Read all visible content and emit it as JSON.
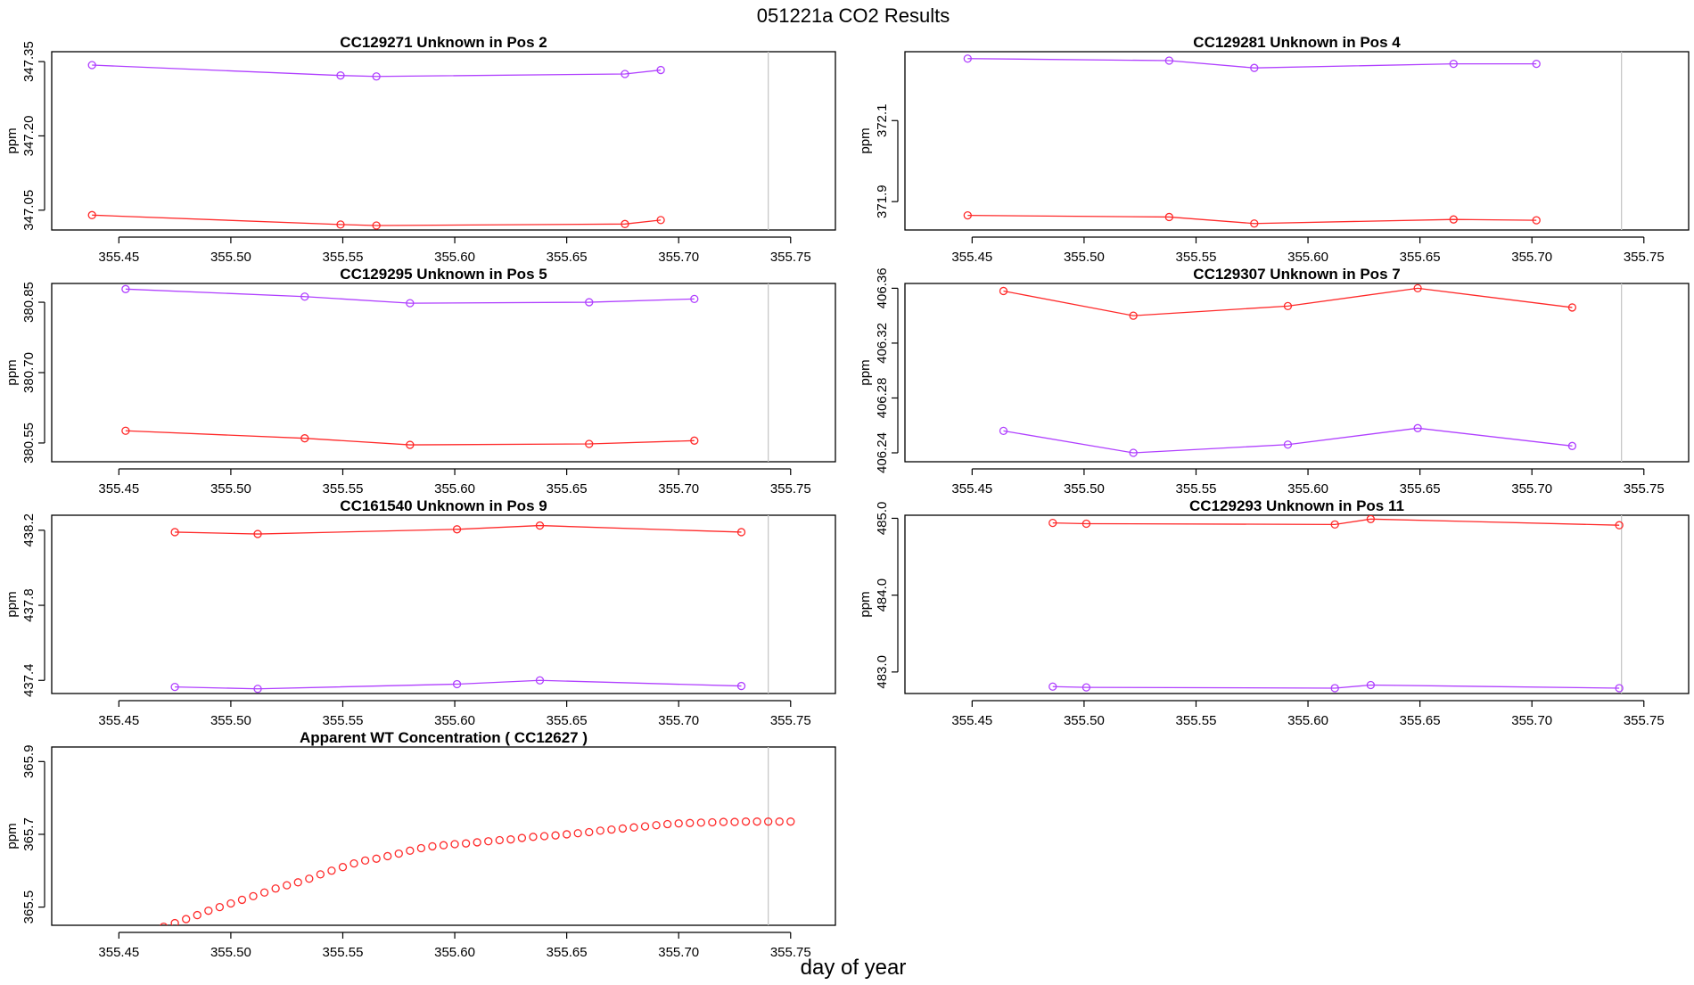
{
  "page_title": "051221a  CO2 Results",
  "x_axis_label": "day of year",
  "y_axis_label": "ppm",
  "colors": {
    "series_a": "#ff2a2a",
    "series_b": "#b040ff",
    "axis": "#000000",
    "vline": "#c8c8c8"
  },
  "chart_data": [
    {
      "type": "line",
      "title": "CC129271    Unknown in Pos 2",
      "xlabel": "",
      "ylabel": "ppm",
      "xlim": [
        355.42,
        355.77
      ],
      "ylim": [
        347.01,
        347.37
      ],
      "xticks": [
        "355.45",
        "355.50",
        "355.55",
        "355.60",
        "355.65",
        "355.70",
        "355.75"
      ],
      "yticks": [
        347.05,
        347.2,
        347.35
      ],
      "ytick_labels": [
        "347.05",
        "347.20",
        "347.35"
      ],
      "vline": 355.74,
      "series": [
        {
          "name": "purple",
          "color": "#b040ff",
          "marker": "circle",
          "line": true,
          "x": [
            355.438,
            355.549,
            355.565,
            355.676,
            355.692
          ],
          "y": [
            347.343,
            347.322,
            347.32,
            347.325,
            347.333
          ]
        },
        {
          "name": "red",
          "color": "#ff2a2a",
          "marker": "circle",
          "line": true,
          "x": [
            355.438,
            355.549,
            355.565,
            355.676,
            355.692
          ],
          "y": [
            347.04,
            347.021,
            347.019,
            347.022,
            347.03
          ]
        }
      ]
    },
    {
      "type": "line",
      "title": "CC129281    Unknown in Pos 4",
      "xlabel": "",
      "ylabel": "ppm",
      "xlim": [
        355.42,
        355.77
      ],
      "ylim": [
        371.83,
        372.27
      ],
      "xticks": [
        "355.45",
        "355.50",
        "355.55",
        "355.60",
        "355.65",
        "355.70",
        "355.75"
      ],
      "yticks": [
        371.9,
        372.1
      ],
      "ytick_labels": [
        "371.9",
        "372.1"
      ],
      "vline": 355.74,
      "series": [
        {
          "name": "purple",
          "color": "#b040ff",
          "marker": "circle",
          "line": true,
          "x": [
            355.448,
            355.538,
            355.576,
            355.665,
            355.702
          ],
          "y": [
            372.253,
            372.248,
            372.23,
            372.24,
            372.24
          ]
        },
        {
          "name": "red",
          "color": "#ff2a2a",
          "marker": "circle",
          "line": true,
          "x": [
            355.448,
            355.538,
            355.576,
            355.665,
            355.702
          ],
          "y": [
            371.866,
            371.862,
            371.846,
            371.856,
            371.854
          ]
        }
      ]
    },
    {
      "type": "line",
      "title": "CC129295    Unknown in Pos 5",
      "xlabel": "",
      "ylabel": "ppm",
      "xlim": [
        355.42,
        355.77
      ],
      "ylim": [
        380.51,
        380.89
      ],
      "xticks": [
        "355.45",
        "355.50",
        "355.55",
        "355.60",
        "355.65",
        "355.70",
        "355.75"
      ],
      "yticks": [
        380.55,
        380.7,
        380.85
      ],
      "ytick_labels": [
        "380.55",
        "380.70",
        "380.85"
      ],
      "vline": 355.74,
      "series": [
        {
          "name": "purple",
          "color": "#b040ff",
          "marker": "circle",
          "line": true,
          "x": [
            355.453,
            355.533,
            355.58,
            355.66,
            355.707
          ],
          "y": [
            380.878,
            380.862,
            380.848,
            380.85,
            380.857
          ]
        },
        {
          "name": "red",
          "color": "#ff2a2a",
          "marker": "circle",
          "line": true,
          "x": [
            355.453,
            355.533,
            355.58,
            355.66,
            355.707
          ],
          "y": [
            380.576,
            380.56,
            380.546,
            380.548,
            380.555
          ]
        }
      ]
    },
    {
      "type": "line",
      "title": "CC129307    Unknown in Pos 7",
      "xlabel": "",
      "ylabel": "ppm",
      "xlim": [
        355.42,
        355.77
      ],
      "ylim": [
        406.2335,
        406.3635
      ],
      "xticks": [
        "355.45",
        "355.50",
        "355.55",
        "355.60",
        "355.65",
        "355.70",
        "355.75"
      ],
      "yticks": [
        406.24,
        406.28,
        406.32,
        406.36
      ],
      "ytick_labels": [
        "406.24",
        "406.28",
        "406.32",
        "406.36"
      ],
      "vline": 355.74,
      "series": [
        {
          "name": "red",
          "color": "#ff2a2a",
          "marker": "circle",
          "line": true,
          "x": [
            355.464,
            355.522,
            355.591,
            355.649,
            355.718
          ],
          "y": [
            406.358,
            406.34,
            406.347,
            406.36,
            406.346
          ]
        },
        {
          "name": "purple",
          "color": "#b040ff",
          "marker": "circle",
          "line": true,
          "x": [
            355.464,
            355.522,
            355.591,
            355.649,
            355.718
          ],
          "y": [
            406.256,
            406.24,
            406.246,
            406.258,
            406.245
          ]
        }
      ]
    },
    {
      "type": "line",
      "title": "CC161540    Unknown in Pos 9",
      "xlabel": "",
      "ylabel": "ppm",
      "xlim": [
        355.42,
        355.77
      ],
      "ylim": [
        437.33,
        438.28
      ],
      "xticks": [
        "355.45",
        "355.50",
        "355.55",
        "355.60",
        "355.65",
        "355.70",
        "355.75"
      ],
      "yticks": [
        437.4,
        437.8,
        438.2
      ],
      "ytick_labels": [
        "437.4",
        "437.8",
        "438.2"
      ],
      "vline": 355.74,
      "series": [
        {
          "name": "red",
          "color": "#ff2a2a",
          "marker": "circle",
          "line": true,
          "x": [
            355.475,
            355.512,
            355.601,
            355.638,
            355.728
          ],
          "y": [
            438.19,
            438.18,
            438.205,
            438.225,
            438.19
          ]
        },
        {
          "name": "purple",
          "color": "#b040ff",
          "marker": "circle",
          "line": true,
          "x": [
            355.475,
            355.512,
            355.601,
            355.638,
            355.728
          ],
          "y": [
            437.365,
            437.355,
            437.38,
            437.4,
            437.37
          ]
        }
      ]
    },
    {
      "type": "line",
      "title": "CC129293    Unknown in Pos 11",
      "xlabel": "",
      "ylabel": "ppm",
      "xlim": [
        355.42,
        355.77
      ],
      "ylim": [
        482.72,
        485.04
      ],
      "xticks": [
        "355.45",
        "355.50",
        "355.55",
        "355.60",
        "355.65",
        "355.70",
        "355.75"
      ],
      "yticks": [
        483.0,
        484.0,
        485.0
      ],
      "ytick_labels": [
        "483.0",
        "484.0",
        "485.0"
      ],
      "vline": 355.74,
      "series": [
        {
          "name": "red",
          "color": "#ff2a2a",
          "marker": "circle",
          "line": true,
          "x": [
            355.486,
            355.501,
            355.612,
            355.628,
            355.739
          ],
          "y": [
            484.94,
            484.93,
            484.92,
            484.99,
            484.91
          ]
        },
        {
          "name": "purple",
          "color": "#b040ff",
          "marker": "circle",
          "line": true,
          "x": [
            355.486,
            355.501,
            355.612,
            355.628,
            355.739
          ],
          "y": [
            482.81,
            482.8,
            482.79,
            482.83,
            482.79
          ]
        }
      ]
    },
    {
      "type": "scatter",
      "title": "Apparent WT Concentration ( CC12627 )",
      "xlabel": "",
      "ylabel": "ppm",
      "xlim": [
        355.42,
        355.77
      ],
      "ylim": [
        365.45,
        365.94
      ],
      "xticks": [
        "355.45",
        "355.50",
        "355.55",
        "355.60",
        "355.65",
        "355.70",
        "355.75"
      ],
      "yticks": [
        365.5,
        365.7,
        365.9
      ],
      "ytick_labels": [
        "365.5",
        "365.7",
        "365.9"
      ],
      "vline": 355.74,
      "series": [
        {
          "name": "wt",
          "color": "#ff2a2a",
          "marker": "circle",
          "line": false,
          "x": [
            355.47,
            355.475,
            355.48,
            355.485,
            355.49,
            355.495,
            355.5,
            355.505,
            355.51,
            355.515,
            355.52,
            355.525,
            355.53,
            355.535,
            355.54,
            355.545,
            355.55,
            355.555,
            355.56,
            355.565,
            355.57,
            355.575,
            355.58,
            355.585,
            355.59,
            355.595,
            355.6,
            355.605,
            355.61,
            355.615,
            355.62,
            355.625,
            355.63,
            355.635,
            355.64,
            355.645,
            355.65,
            355.655,
            355.66,
            355.665,
            355.67,
            355.675,
            355.68,
            355.685,
            355.69,
            355.695,
            355.7,
            355.705,
            355.71,
            355.715,
            355.72,
            355.725,
            355.73,
            355.735,
            355.74,
            355.745,
            355.75
          ],
          "y": [
            365.446,
            365.456,
            365.467,
            365.478,
            365.49,
            365.5,
            365.51,
            365.52,
            365.53,
            365.54,
            365.551,
            365.56,
            365.568,
            365.578,
            365.59,
            365.6,
            365.61,
            365.62,
            365.628,
            365.633,
            365.64,
            365.647,
            365.655,
            365.662,
            365.667,
            365.67,
            365.673,
            365.675,
            365.678,
            365.681,
            365.684,
            365.686,
            365.69,
            365.693,
            365.695,
            365.697,
            365.7,
            365.703,
            365.706,
            365.71,
            365.713,
            365.716,
            365.719,
            365.722,
            365.725,
            365.728,
            365.73,
            365.731,
            365.732,
            365.733,
            365.734,
            365.734,
            365.735,
            365.735,
            365.735,
            365.735,
            365.735
          ]
        }
      ]
    }
  ]
}
